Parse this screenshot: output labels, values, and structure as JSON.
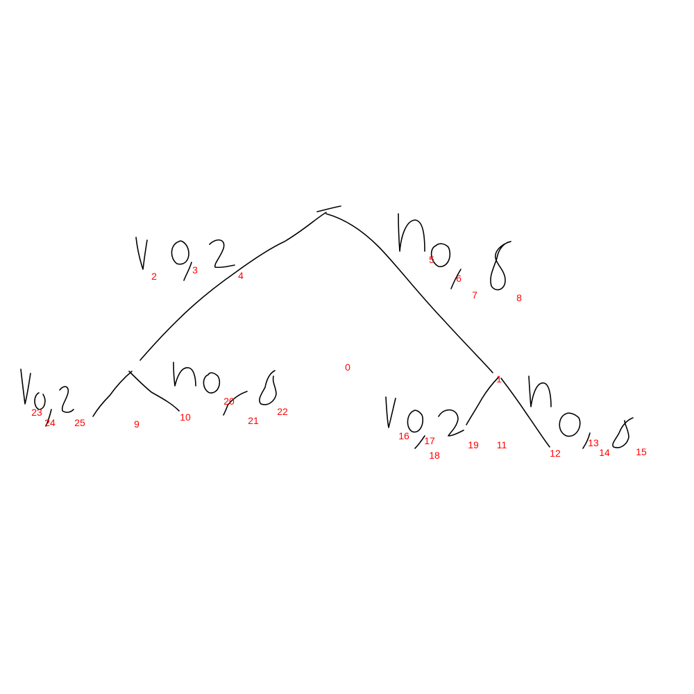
{
  "ink_color": "#000000",
  "index_color": "#ff0000",
  "strokes": [
    {
      "index": "0"
    },
    {
      "index": "1"
    },
    {
      "index": "2"
    },
    {
      "index": "3"
    },
    {
      "index": "4"
    },
    {
      "index": "5"
    },
    {
      "index": "6"
    },
    {
      "index": "7"
    },
    {
      "index": "8"
    },
    {
      "index": "9"
    },
    {
      "index": "10"
    },
    {
      "index": "11"
    },
    {
      "index": "12"
    },
    {
      "index": "13"
    },
    {
      "index": "14"
    },
    {
      "index": "15"
    },
    {
      "index": "16"
    },
    {
      "index": "17"
    },
    {
      "index": "18"
    },
    {
      "index": "19"
    },
    {
      "index": "20"
    },
    {
      "index": "21"
    },
    {
      "index": "22"
    },
    {
      "index": "23"
    },
    {
      "index": "24"
    },
    {
      "index": "25"
    }
  ]
}
